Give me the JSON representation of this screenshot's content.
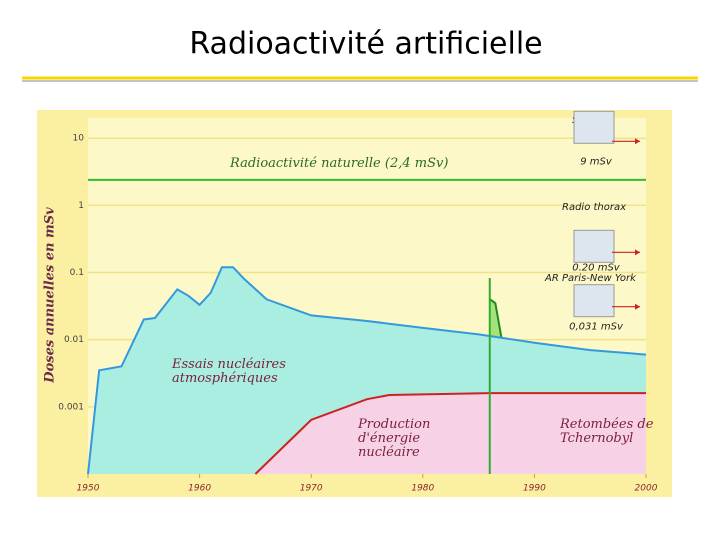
{
  "title": "Radioactivité artificielle",
  "chart_data": {
    "type": "area",
    "ylabel": "Doses annuelles en mSv",
    "log_y": true,
    "grid": true,
    "xlim": [
      1950,
      2000
    ],
    "xticks": [
      1950,
      1960,
      1970,
      1980,
      1990,
      2000
    ],
    "ylim": [
      0.0001,
      20
    ],
    "yticks": [
      10,
      1,
      0.1,
      0.01,
      0.001
    ],
    "series": [
      {
        "name": "Radioactivité naturelle (2,4 mSv)",
        "color": "#33bb33",
        "fill": null,
        "x": [
          1950,
          2000
        ],
        "values": [
          2.4,
          2.4
        ]
      },
      {
        "name": "Retombées de Tchernobyl",
        "color": "#228822",
        "fill": "#a6e27a",
        "x": [
          1986,
          1986.5,
          1987.5,
          1990,
          1995,
          2000
        ],
        "values": [
          0.04,
          0.035,
          0.004,
          0.003,
          0.0027,
          0.0023
        ]
      },
      {
        "name": "Essais nucléaires atmosphériques",
        "color": "#3399dd",
        "fill": "#aaeee2",
        "x": [
          1950,
          1951,
          1953,
          1955,
          1956,
          1958,
          1959,
          1960,
          1961,
          1962,
          1963,
          1964,
          1966,
          1970,
          1975,
          1980,
          1985,
          1990,
          1995,
          2000
        ],
        "values": [
          0.0001,
          0.0035,
          0.004,
          0.02,
          0.021,
          0.056,
          0.045,
          0.033,
          0.05,
          0.12,
          0.12,
          0.08,
          0.04,
          0.023,
          0.019,
          0.015,
          0.012,
          0.009,
          0.007,
          0.006
        ]
      },
      {
        "name": "Production d'énergie nucléaire",
        "color": "#cc2222",
        "fill": "#f7d2e6",
        "x": [
          1965,
          1970,
          1975,
          1977,
          1986,
          2000
        ],
        "values": [
          0.0001,
          0.00064,
          0.0013,
          0.0015,
          0.0016,
          0.0016
        ]
      }
    ],
    "references": [
      {
        "label": "Scanner",
        "value": 9,
        "value_label": "9 mSv"
      },
      {
        "label": "Radio thorax",
        "value": 0.2,
        "value_label": "0.20 mSv"
      },
      {
        "label": "AR Paris-New York",
        "value": 0.031,
        "value_label": "0,031 mSv"
      }
    ]
  }
}
